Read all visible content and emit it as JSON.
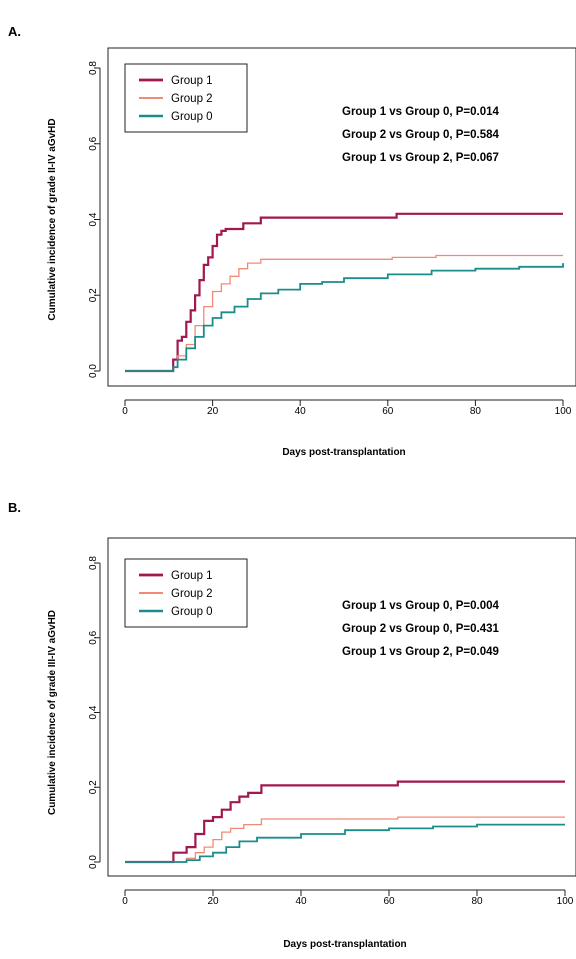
{
  "chart_data": [
    {
      "panel_label": "A.",
      "type": "line",
      "step": true,
      "xlabel": "Days post-transplantation",
      "ylabel": "Cumulative incidence of grade II-IV aGvHD",
      "xlim": [
        0,
        100
      ],
      "ylim": [
        0,
        0.8
      ],
      "xticks": [
        "0",
        "20",
        "40",
        "60",
        "80",
        "100"
      ],
      "yticks": [
        "0.0",
        "0.2",
        "0.4",
        "0.6",
        "0.8"
      ],
      "grid": false,
      "legend_position": "top-left",
      "series": [
        {
          "name": "Group 1",
          "color": "#a3174f",
          "width": 2.2,
          "points": [
            [
              0,
              0
            ],
            [
              10,
              0
            ],
            [
              11,
              0.03
            ],
            [
              12,
              0.08
            ],
            [
              13,
              0.09
            ],
            [
              14,
              0.13
            ],
            [
              15,
              0.16
            ],
            [
              16,
              0.2
            ],
            [
              17,
              0.24
            ],
            [
              18,
              0.28
            ],
            [
              19,
              0.3
            ],
            [
              20,
              0.33
            ],
            [
              21,
              0.36
            ],
            [
              22,
              0.37
            ],
            [
              23,
              0.375
            ],
            [
              27,
              0.39
            ],
            [
              31,
              0.405
            ],
            [
              62,
              0.415
            ],
            [
              100,
              0.415
            ]
          ]
        },
        {
          "name": "Group 2",
          "color": "#f08a78",
          "width": 1.3,
          "points": [
            [
              0,
              0
            ],
            [
              10,
              0
            ],
            [
              11,
              0.01
            ],
            [
              12,
              0.04
            ],
            [
              14,
              0.07
            ],
            [
              16,
              0.12
            ],
            [
              18,
              0.17
            ],
            [
              20,
              0.21
            ],
            [
              22,
              0.23
            ],
            [
              24,
              0.25
            ],
            [
              26,
              0.27
            ],
            [
              28,
              0.285
            ],
            [
              31,
              0.295
            ],
            [
              61,
              0.3
            ],
            [
              71,
              0.305
            ],
            [
              100,
              0.305
            ]
          ]
        },
        {
          "name": "Group 0",
          "color": "#1a8c8c",
          "width": 1.8,
          "points": [
            [
              0,
              0
            ],
            [
              10,
              0
            ],
            [
              11,
              0.01
            ],
            [
              12,
              0.03
            ],
            [
              14,
              0.06
            ],
            [
              16,
              0.09
            ],
            [
              18,
              0.12
            ],
            [
              20,
              0.14
            ],
            [
              22,
              0.155
            ],
            [
              25,
              0.17
            ],
            [
              28,
              0.19
            ],
            [
              31,
              0.205
            ],
            [
              35,
              0.215
            ],
            [
              40,
              0.23
            ],
            [
              45,
              0.235
            ],
            [
              50,
              0.245
            ],
            [
              60,
              0.255
            ],
            [
              70,
              0.265
            ],
            [
              80,
              0.27
            ],
            [
              90,
              0.275
            ],
            [
              99,
              0.275
            ],
            [
              100,
              0.285
            ]
          ]
        }
      ],
      "annotations": [
        "Group 1 vs Group 0, P=0.014",
        "Group 2 vs Group 0, P=0.584",
        "Group 1 vs Group 2, P=0.067"
      ]
    },
    {
      "panel_label": "B.",
      "type": "line",
      "step": true,
      "xlabel": "Days post-transplantation",
      "ylabel": "Cumulative incidence of grade III-IV aGvHD",
      "xlim": [
        0,
        100
      ],
      "ylim": [
        0,
        0.8
      ],
      "xticks": [
        "0",
        "20",
        "40",
        "60",
        "80",
        "100"
      ],
      "yticks": [
        "0.0",
        "0.2",
        "0.4",
        "0.6",
        "0.8"
      ],
      "grid": false,
      "legend_position": "top-left",
      "series": [
        {
          "name": "Group 1",
          "color": "#a3174f",
          "width": 2.2,
          "points": [
            [
              0,
              0
            ],
            [
              10,
              0
            ],
            [
              11,
              0.025
            ],
            [
              14,
              0.04
            ],
            [
              16,
              0.075
            ],
            [
              18,
              0.11
            ],
            [
              20,
              0.12
            ],
            [
              22,
              0.14
            ],
            [
              24,
              0.16
            ],
            [
              26,
              0.175
            ],
            [
              28,
              0.185
            ],
            [
              31,
              0.205
            ],
            [
              62,
              0.215
            ],
            [
              100,
              0.215
            ]
          ]
        },
        {
          "name": "Group 2",
          "color": "#f08a78",
          "width": 1.3,
          "points": [
            [
              0,
              0
            ],
            [
              13,
              0
            ],
            [
              14,
              0.01
            ],
            [
              16,
              0.025
            ],
            [
              18,
              0.04
            ],
            [
              20,
              0.06
            ],
            [
              22,
              0.08
            ],
            [
              24,
              0.09
            ],
            [
              27,
              0.1
            ],
            [
              31,
              0.115
            ],
            [
              62,
              0.12
            ],
            [
              100,
              0.12
            ]
          ]
        },
        {
          "name": "Group 0",
          "color": "#1a8c8c",
          "width": 1.8,
          "points": [
            [
              0,
              0
            ],
            [
              13,
              0
            ],
            [
              14,
              0.005
            ],
            [
              17,
              0.015
            ],
            [
              20,
              0.025
            ],
            [
              23,
              0.04
            ],
            [
              26,
              0.055
            ],
            [
              30,
              0.065
            ],
            [
              40,
              0.075
            ],
            [
              50,
              0.085
            ],
            [
              60,
              0.09
            ],
            [
              70,
              0.095
            ],
            [
              80,
              0.1
            ],
            [
              100,
              0.1
            ]
          ]
        }
      ],
      "annotations": [
        "Group 1 vs Group 0, P=0.004",
        "Group 2 vs Group 0, P=0.431",
        "Group 1 vs Group 2, P=0.049"
      ]
    }
  ]
}
